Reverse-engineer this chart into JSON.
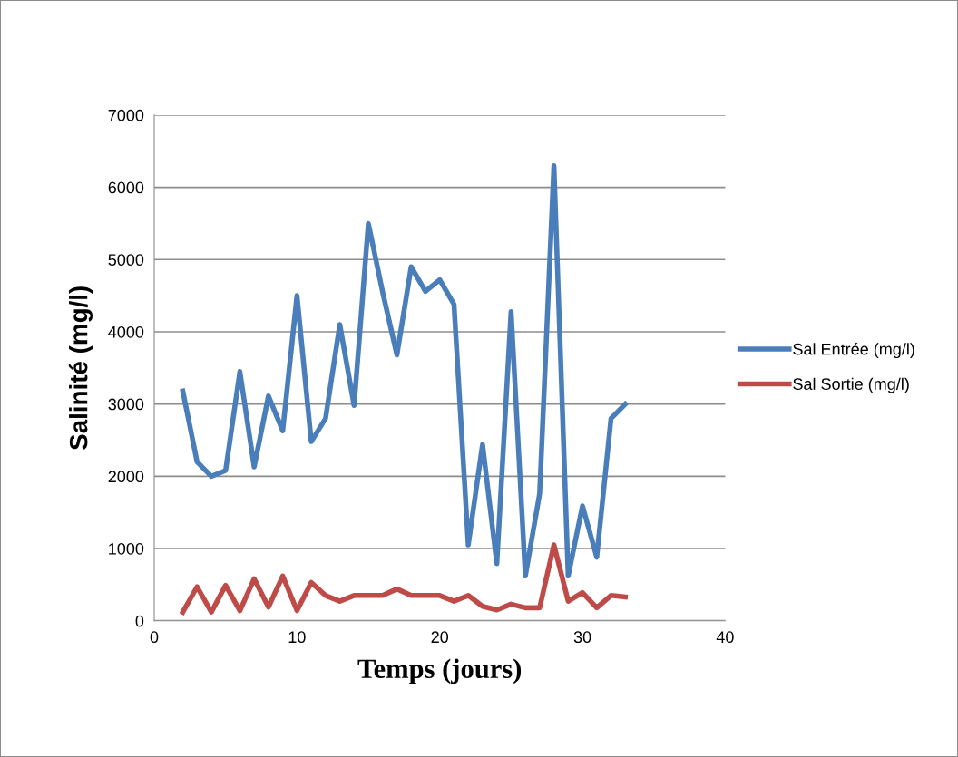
{
  "chart_data": {
    "type": "line",
    "xlabel": "Temps (jours)",
    "ylabel": "Salinité (mg/l)",
    "x": [
      2,
      3,
      4,
      5,
      6,
      7,
      8,
      9,
      10,
      11,
      12,
      13,
      14,
      15,
      16,
      17,
      18,
      19,
      20,
      21,
      22,
      23,
      24,
      25,
      26,
      27,
      28,
      29,
      30,
      31,
      32,
      33
    ],
    "series": [
      {
        "name": "Sal Entrée (mg/l)",
        "color": "#4a7ebb",
        "values": [
          3180,
          2200,
          2000,
          2080,
          3450,
          2130,
          3110,
          2630,
          4500,
          2480,
          2800,
          4100,
          2980,
          5500,
          4550,
          3680,
          4900,
          4560,
          4720,
          4380,
          1050,
          2440,
          790,
          4280,
          620,
          1760,
          6300,
          620,
          1590,
          880,
          2800,
          3000
        ]
      },
      {
        "name": "Sal Sortie (mg/l)",
        "color": "#be4b48",
        "values": [
          120,
          470,
          120,
          490,
          140,
          580,
          190,
          620,
          140,
          530,
          350,
          270,
          350,
          350,
          350,
          440,
          350,
          350,
          350,
          270,
          350,
          200,
          150,
          230,
          180,
          180,
          1050,
          270,
          390,
          180,
          350,
          330
        ]
      }
    ],
    "xlim": [
      0,
      40
    ],
    "xticks": [
      0,
      10,
      20,
      30,
      40
    ],
    "ylim": [
      0,
      7000
    ],
    "yticks": [
      0,
      1000,
      2000,
      3000,
      4000,
      5000,
      6000,
      7000
    ],
    "grid": "y",
    "legend": "right",
    "marker": "none",
    "line_style": "solid"
  }
}
